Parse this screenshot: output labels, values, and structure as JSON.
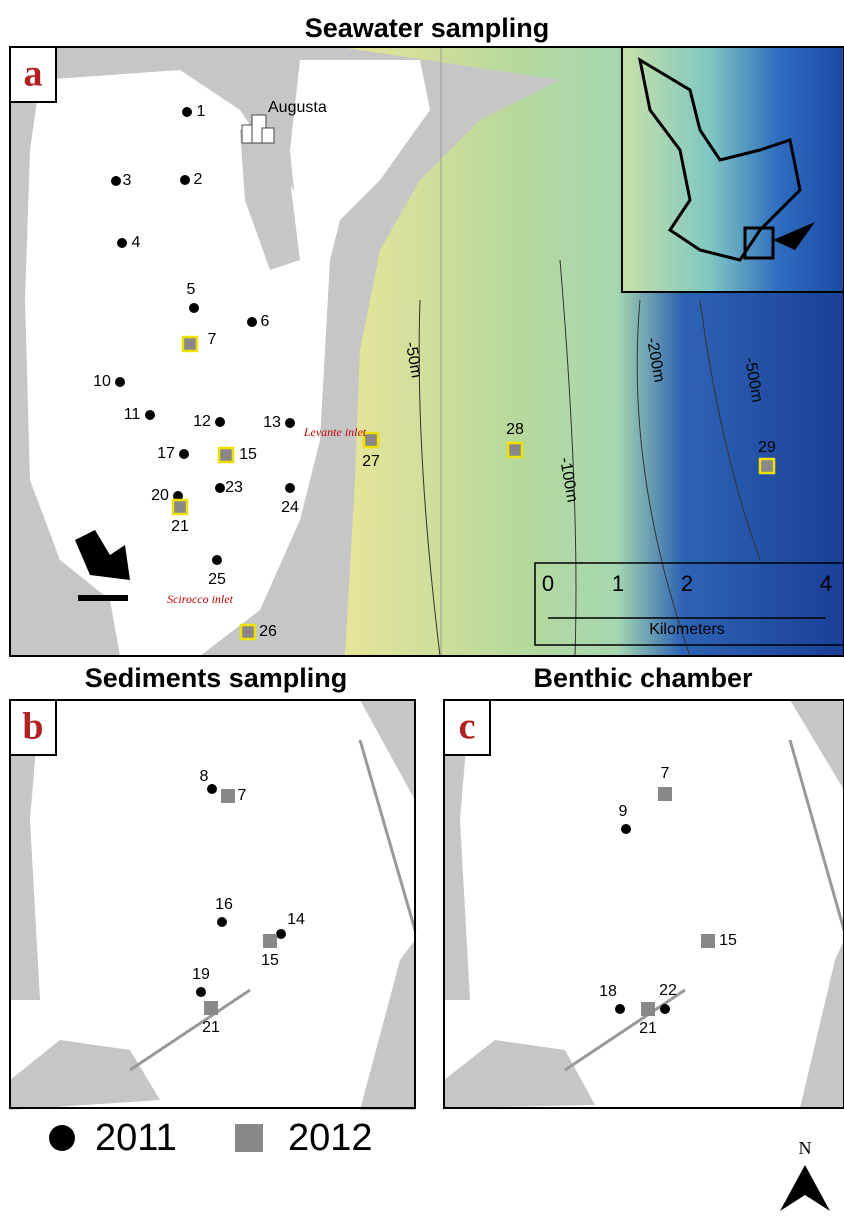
{
  "panels": [
    {
      "letter": "a",
      "title": "Seawater sampling",
      "city": "Augusta",
      "inlets": [
        "Levante inlet",
        "Scirocco inlet"
      ],
      "depths": [
        "-50m",
        "-100m",
        "-200m",
        "-500m"
      ],
      "stations": {
        "circle": [
          "1",
          "3",
          "2",
          "4",
          "5",
          "6",
          "10",
          "11",
          "12",
          "13",
          "17",
          "20",
          "23",
          "24",
          "25"
        ],
        "square": [
          "7",
          "15",
          "21",
          "27",
          "28",
          "29",
          "26"
        ]
      },
      "scale": {
        "ticks": [
          "0",
          "1",
          "2",
          "4"
        ],
        "unit": "Kilometers"
      }
    },
    {
      "letter": "b",
      "title": "Sediments sampling",
      "stations": {
        "circle": [
          "8",
          "16",
          "14",
          "19"
        ],
        "square": [
          "7",
          "15",
          "21"
        ]
      }
    },
    {
      "letter": "c",
      "title": "Benthic chamber",
      "stations": {
        "circle": [
          "9",
          "22",
          "18"
        ],
        "square": [
          "7",
          "15",
          "21"
        ]
      }
    }
  ],
  "legend": {
    "circle": "2011",
    "square": "2012"
  },
  "north": "N"
}
